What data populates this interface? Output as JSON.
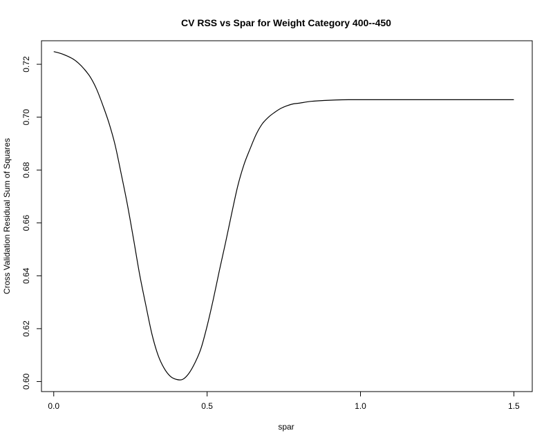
{
  "chart_data": {
    "type": "line",
    "title": "CV RSS vs Spar for Weight Category 400--450",
    "xlabel": "spar",
    "ylabel": "Cross Validation Residual Sum of Squares",
    "xlim": [
      -0.04,
      1.56
    ],
    "ylim": [
      0.5962,
      0.7289
    ],
    "x_ticks": [
      0.0,
      0.5,
      1.0,
      1.5
    ],
    "x_tick_labels": [
      "0.0",
      "0.5",
      "1.0",
      "1.5"
    ],
    "y_ticks": [
      0.6,
      0.62,
      0.64,
      0.66,
      0.68,
      0.7,
      0.72
    ],
    "y_tick_labels": [
      "0.60",
      "0.62",
      "0.64",
      "0.66",
      "0.68",
      "0.70",
      "0.72"
    ],
    "grid": false,
    "series": [
      {
        "x": [
          0.0,
          0.03,
          0.06,
          0.08,
          0.1,
          0.12,
          0.14,
          0.16,
          0.18,
          0.2,
          0.22,
          0.24,
          0.26,
          0.28,
          0.3,
          0.32,
          0.34,
          0.36,
          0.38,
          0.4,
          0.42,
          0.44,
          0.46,
          0.48,
          0.5,
          0.52,
          0.54,
          0.56,
          0.58,
          0.6,
          0.62,
          0.64,
          0.66,
          0.68,
          0.7,
          0.72,
          0.74,
          0.76,
          0.78,
          0.8,
          0.84,
          0.88,
          0.92,
          0.96,
          1.0,
          1.1,
          1.2,
          1.3,
          1.4,
          1.5
        ],
        "y": [
          0.7248,
          0.7238,
          0.7222,
          0.7205,
          0.7181,
          0.715,
          0.7105,
          0.7045,
          0.6978,
          0.6895,
          0.6785,
          0.667,
          0.654,
          0.6405,
          0.629,
          0.618,
          0.61,
          0.605,
          0.602,
          0.6008,
          0.6008,
          0.603,
          0.607,
          0.6125,
          0.621,
          0.631,
          0.642,
          0.6525,
          0.6635,
          0.674,
          0.682,
          0.688,
          0.6935,
          0.6975,
          0.7,
          0.7018,
          0.7033,
          0.7043,
          0.705,
          0.7053,
          0.706,
          0.7063,
          0.7065,
          0.7066,
          0.7066,
          0.7066,
          0.7066,
          0.7066,
          0.7066,
          0.7066
        ]
      }
    ]
  }
}
